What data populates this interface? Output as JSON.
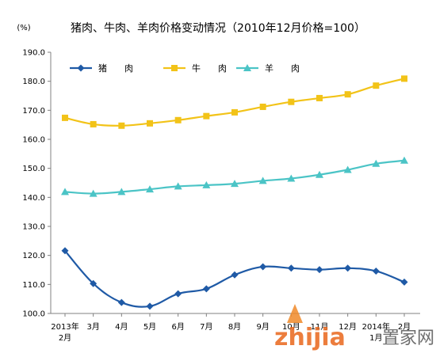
{
  "chart_data": {
    "type": "line",
    "title": "猪肉、牛肉、羊肉价格变动情况（2010年12月价格=100）",
    "unit_label": "(%)",
    "categories": [
      {
        "line1": "2013年",
        "line2": "2月"
      },
      {
        "line1": "3月",
        "line2": ""
      },
      {
        "line1": "4月",
        "line2": ""
      },
      {
        "line1": "5月",
        "line2": ""
      },
      {
        "line1": "6月",
        "line2": ""
      },
      {
        "line1": "7月",
        "line2": ""
      },
      {
        "line1": "8月",
        "line2": ""
      },
      {
        "line1": "9月",
        "line2": ""
      },
      {
        "line1": "10月",
        "line2": ""
      },
      {
        "line1": "11月",
        "line2": ""
      },
      {
        "line1": "12月",
        "line2": ""
      },
      {
        "line1": "2014年",
        "line2": "1月"
      },
      {
        "line1": "2月",
        "line2": ""
      }
    ],
    "yticks": [
      "100.0",
      "110.0",
      "120.0",
      "130.0",
      "140.0",
      "150.0",
      "160.0",
      "170.0",
      "180.0",
      "190.0"
    ],
    "ylim": [
      100,
      190
    ],
    "grid": false,
    "legend_position": "top-left",
    "series": [
      {
        "name": "猪　　肉",
        "color": "#1f5aa6",
        "marker": "diamond",
        "values": [
          121.6,
          110.3,
          103.8,
          102.5,
          106.8,
          108.5,
          113.3,
          116.1,
          115.6,
          115.1,
          115.6,
          114.6,
          110.8
        ]
      },
      {
        "name": "牛　　肉",
        "color": "#f2c318",
        "marker": "square",
        "values": [
          167.4,
          165.2,
          164.7,
          165.5,
          166.6,
          168.0,
          169.3,
          171.2,
          172.9,
          174.2,
          175.5,
          178.5,
          180.9
        ]
      },
      {
        "name": "羊　　肉",
        "color": "#4bc4c6",
        "marker": "triangle",
        "values": [
          141.9,
          141.3,
          141.9,
          142.8,
          143.8,
          144.2,
          144.7,
          145.7,
          146.5,
          147.8,
          149.5,
          151.6,
          152.7
        ]
      }
    ]
  },
  "watermark": {
    "brand": "zhijia",
    "tagline": "置家网"
  }
}
